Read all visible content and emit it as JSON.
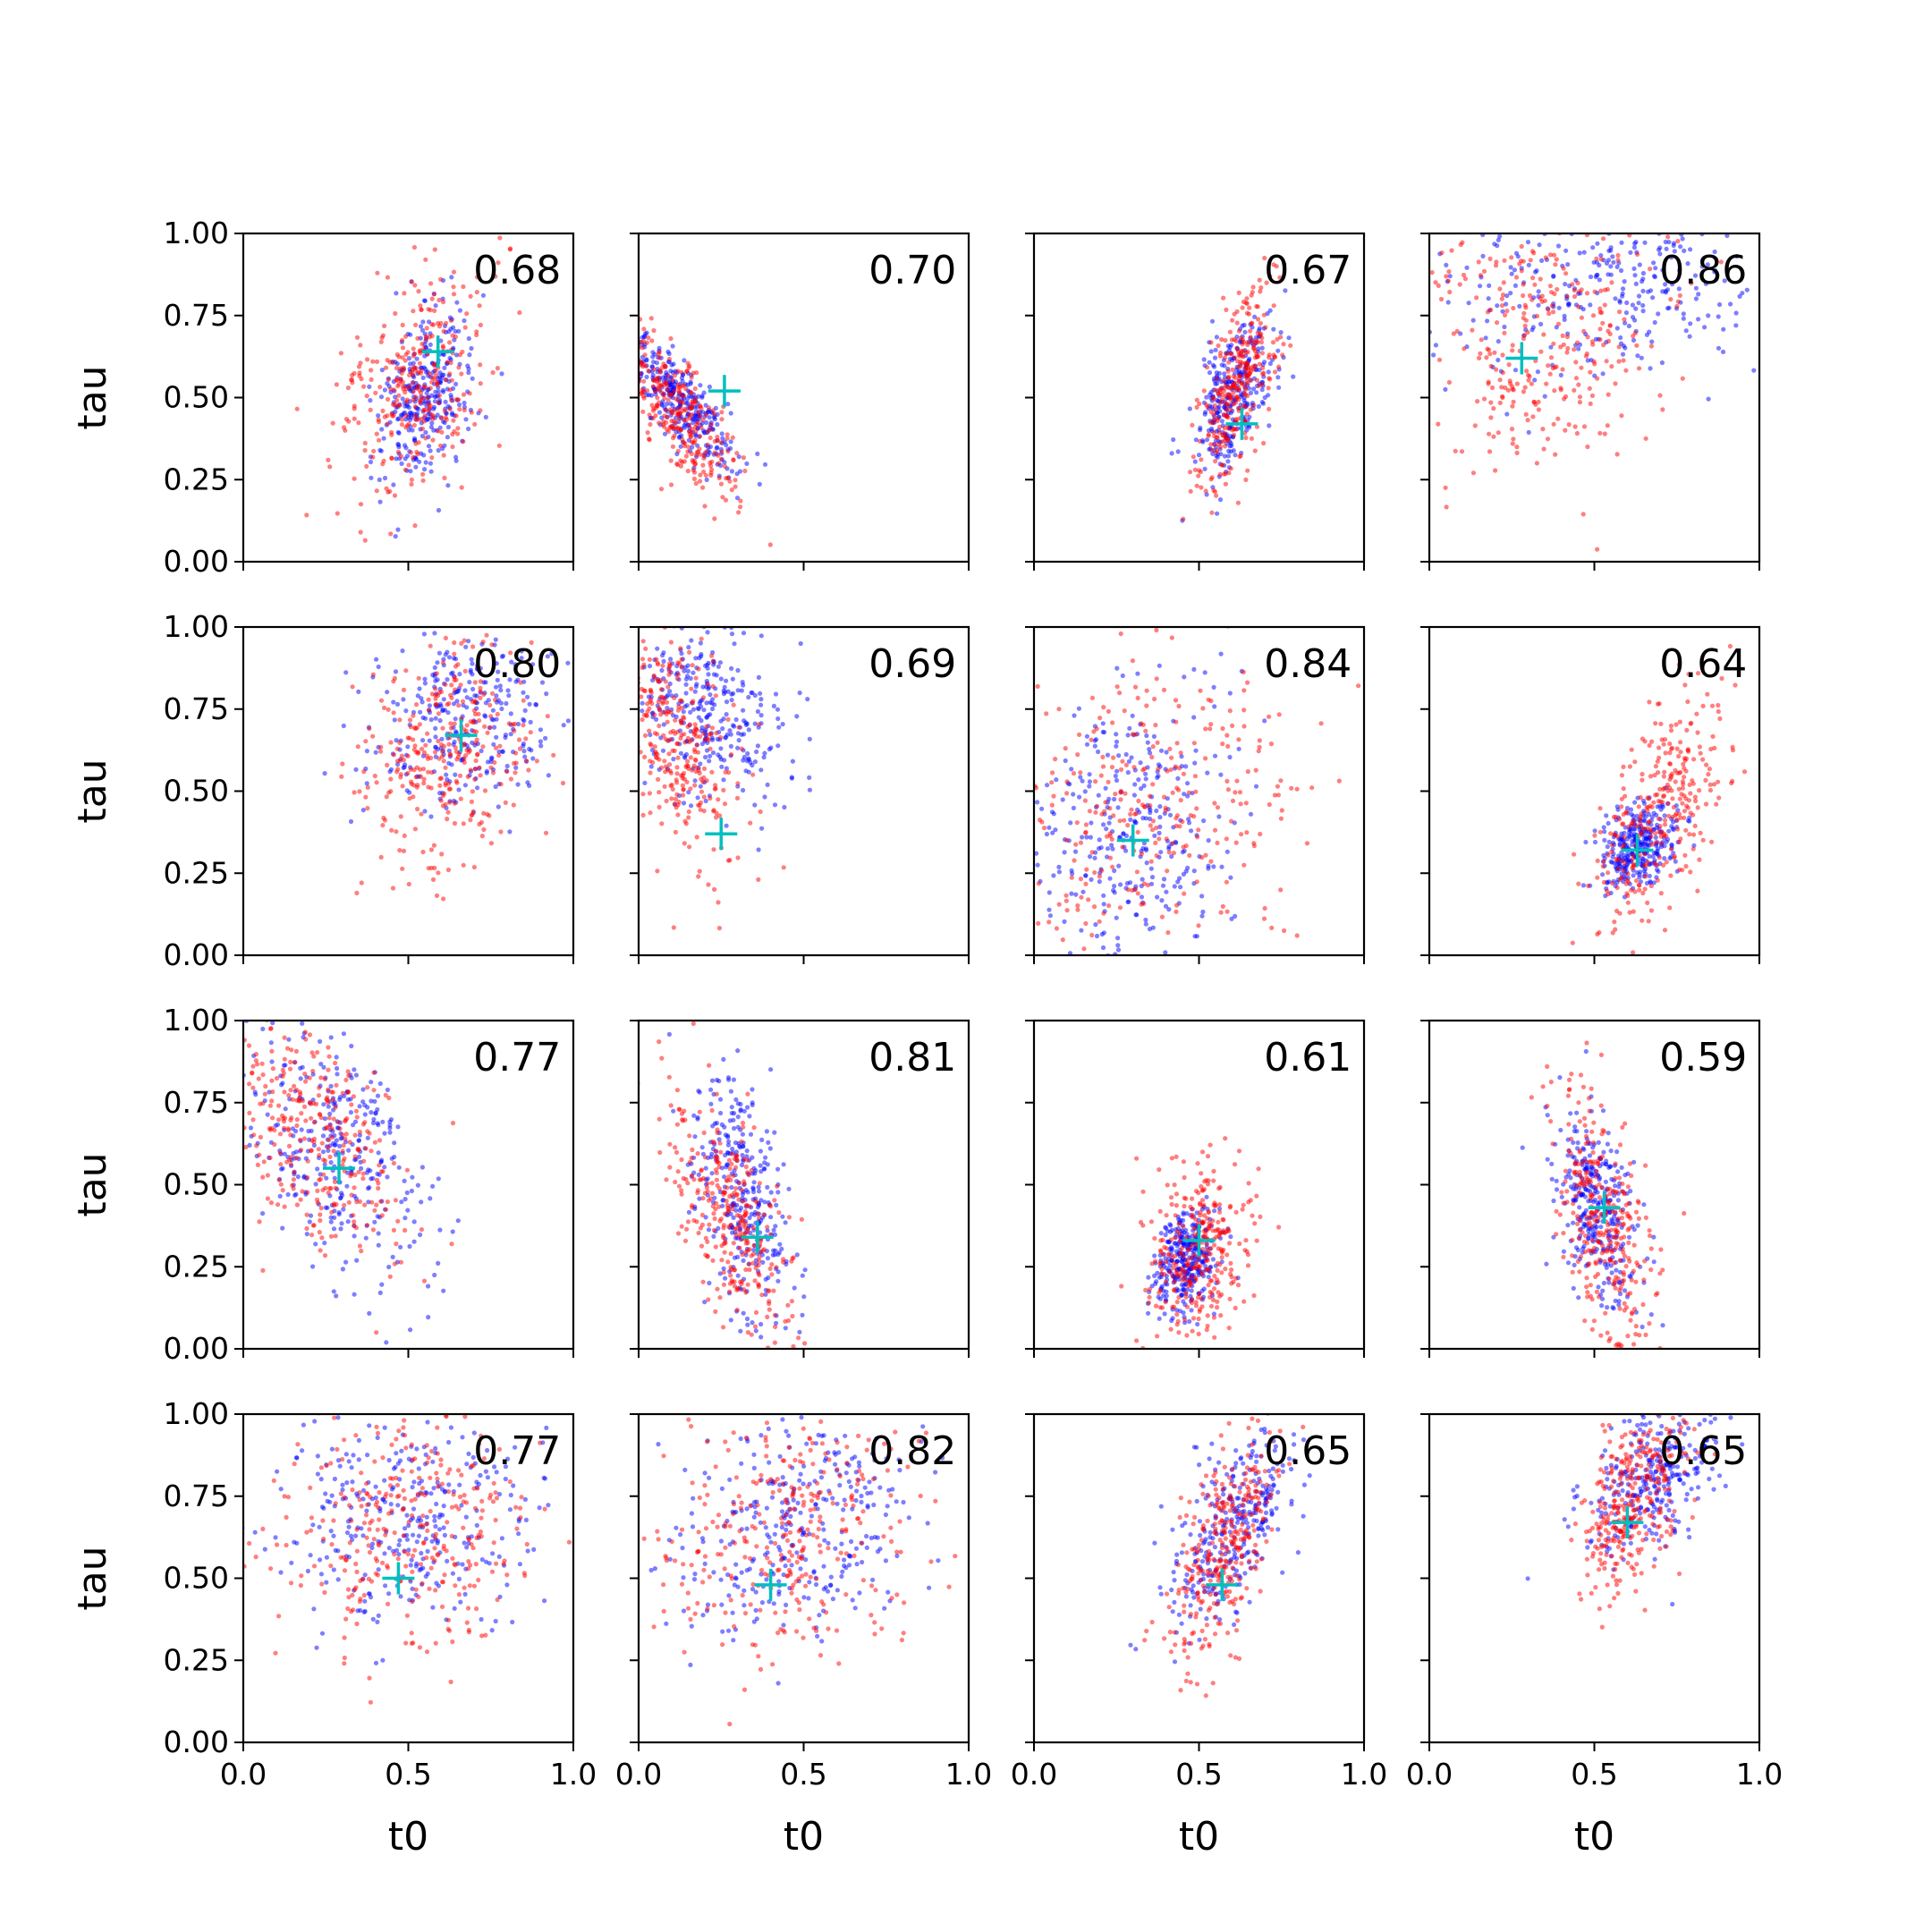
{
  "chart_data": {
    "type": "scatter",
    "layout": "4x4 grid of subplots",
    "xlabel": "t0",
    "ylabel": "tau",
    "xlim": [
      0,
      1
    ],
    "ylim": [
      0,
      1
    ],
    "xticks": [
      "0.0",
      "0.5",
      "1.0"
    ],
    "yticks": [
      "0.00",
      "0.25",
      "0.50",
      "0.75",
      "1.00"
    ],
    "colors": {
      "series_a": "#0000ff",
      "series_b": "#ff0000",
      "marker": "#00bfbf"
    },
    "panels": [
      {
        "annotation": "0.68",
        "marker": [
          0.59,
          0.64
        ],
        "blue": {
          "cx": 0.55,
          "cy": 0.5,
          "sx": 0.07,
          "sy": 0.13,
          "r": 0.3
        },
        "red": {
          "cx": 0.52,
          "cy": 0.55,
          "sx": 0.12,
          "sy": 0.18,
          "r": 0.4
        }
      },
      {
        "annotation": "0.70",
        "marker": [
          0.26,
          0.52
        ],
        "blue": {
          "cx": 0.14,
          "cy": 0.47,
          "sx": 0.08,
          "sy": 0.1,
          "r": -0.8
        },
        "red": {
          "cx": 0.12,
          "cy": 0.45,
          "sx": 0.09,
          "sy": 0.13,
          "r": -0.7
        }
      },
      {
        "annotation": "0.67",
        "marker": [
          0.63,
          0.42
        ],
        "blue": {
          "cx": 0.6,
          "cy": 0.5,
          "sx": 0.06,
          "sy": 0.12,
          "r": 0.5
        },
        "red": {
          "cx": 0.62,
          "cy": 0.55,
          "sx": 0.06,
          "sy": 0.15,
          "r": 0.6
        }
      },
      {
        "annotation": "0.86",
        "marker": [
          0.28,
          0.62
        ],
        "blue": {
          "cx": 0.5,
          "cy": 0.82,
          "sx": 0.25,
          "sy": 0.14,
          "r": 0.0
        },
        "red": {
          "cx": 0.35,
          "cy": 0.7,
          "sx": 0.18,
          "sy": 0.2,
          "r": 0.0
        }
      },
      {
        "annotation": "0.80",
        "marker": [
          0.66,
          0.67
        ],
        "blue": {
          "cx": 0.68,
          "cy": 0.72,
          "sx": 0.15,
          "sy": 0.15,
          "r": 0.1
        },
        "red": {
          "cx": 0.62,
          "cy": 0.62,
          "sx": 0.12,
          "sy": 0.17,
          "r": 0.2
        }
      },
      {
        "annotation": "0.69",
        "marker": [
          0.25,
          0.37
        ],
        "blue": {
          "cx": 0.2,
          "cy": 0.75,
          "sx": 0.12,
          "sy": 0.14,
          "r": -0.3
        },
        "red": {
          "cx": 0.12,
          "cy": 0.65,
          "sx": 0.1,
          "sy": 0.2,
          "r": -0.4
        }
      },
      {
        "annotation": "0.84",
        "marker": [
          0.3,
          0.35
        ],
        "blue": {
          "cx": 0.3,
          "cy": 0.38,
          "sx": 0.15,
          "sy": 0.22,
          "r": 0.0
        },
        "red": {
          "cx": 0.35,
          "cy": 0.45,
          "sx": 0.22,
          "sy": 0.25,
          "r": 0.1
        }
      },
      {
        "annotation": "0.64",
        "marker": [
          0.63,
          0.32
        ],
        "blue": {
          "cx": 0.63,
          "cy": 0.32,
          "sx": 0.06,
          "sy": 0.07,
          "r": 0.4
        },
        "red": {
          "cx": 0.7,
          "cy": 0.45,
          "sx": 0.1,
          "sy": 0.18,
          "r": 0.6
        }
      },
      {
        "annotation": "0.77",
        "marker": [
          0.29,
          0.55
        ],
        "blue": {
          "cx": 0.28,
          "cy": 0.6,
          "sx": 0.14,
          "sy": 0.2,
          "r": -0.4
        },
        "red": {
          "cx": 0.22,
          "cy": 0.65,
          "sx": 0.14,
          "sy": 0.2,
          "r": -0.5
        }
      },
      {
        "annotation": "0.81",
        "marker": [
          0.36,
          0.34
        ],
        "blue": {
          "cx": 0.32,
          "cy": 0.45,
          "sx": 0.08,
          "sy": 0.2,
          "r": -0.5
        },
        "red": {
          "cx": 0.28,
          "cy": 0.4,
          "sx": 0.1,
          "sy": 0.2,
          "r": -0.6
        }
      },
      {
        "annotation": "0.61",
        "marker": [
          0.5,
          0.33
        ],
        "blue": {
          "cx": 0.46,
          "cy": 0.27,
          "sx": 0.05,
          "sy": 0.08,
          "r": 0.3
        },
        "red": {
          "cx": 0.5,
          "cy": 0.3,
          "sx": 0.08,
          "sy": 0.14,
          "r": 0.3
        }
      },
      {
        "annotation": "0.59",
        "marker": [
          0.53,
          0.43
        ],
        "blue": {
          "cx": 0.5,
          "cy": 0.45,
          "sx": 0.06,
          "sy": 0.14,
          "r": -0.4
        },
        "red": {
          "cx": 0.52,
          "cy": 0.38,
          "sx": 0.07,
          "sy": 0.2,
          "r": -0.5
        }
      },
      {
        "annotation": "0.77",
        "marker": [
          0.47,
          0.5
        ],
        "blue": {
          "cx": 0.5,
          "cy": 0.7,
          "sx": 0.22,
          "sy": 0.17,
          "r": 0.0
        },
        "red": {
          "cx": 0.5,
          "cy": 0.65,
          "sx": 0.2,
          "sy": 0.2,
          "r": 0.0
        }
      },
      {
        "annotation": "0.82",
        "marker": [
          0.4,
          0.48
        ],
        "blue": {
          "cx": 0.48,
          "cy": 0.65,
          "sx": 0.18,
          "sy": 0.17,
          "r": 0.2
        },
        "red": {
          "cx": 0.45,
          "cy": 0.62,
          "sx": 0.2,
          "sy": 0.2,
          "r": 0.2
        }
      },
      {
        "annotation": "0.65",
        "marker": [
          0.57,
          0.48
        ],
        "blue": {
          "cx": 0.6,
          "cy": 0.65,
          "sx": 0.1,
          "sy": 0.15,
          "r": 0.6
        },
        "red": {
          "cx": 0.58,
          "cy": 0.6,
          "sx": 0.08,
          "sy": 0.17,
          "r": 0.6
        }
      },
      {
        "annotation": "0.65",
        "marker": [
          0.6,
          0.67
        ],
        "blue": {
          "cx": 0.68,
          "cy": 0.82,
          "sx": 0.1,
          "sy": 0.12,
          "r": 0.5
        },
        "red": {
          "cx": 0.62,
          "cy": 0.75,
          "sx": 0.08,
          "sy": 0.15,
          "r": 0.5
        }
      }
    ]
  }
}
